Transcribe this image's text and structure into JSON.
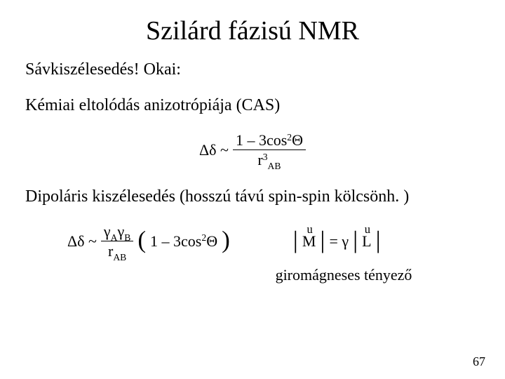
{
  "title": "Szilárd fázisú NMR",
  "line1": "Sávkiszélesedés! Okai:",
  "line2": "Kémiai eltolódás anizotrópiája (CAS)",
  "line3": "Dipoláris kiszélesedés (hosszú távú spin-spin kölcsönh. )",
  "gyro_label": "giromágneses tényező",
  "page_number": "67",
  "formula1": {
    "lhs": "Δδ ~",
    "num_a": "1 – 3cos",
    "num_sup": "2",
    "num_b": "Θ",
    "den_a": "r",
    "den_sup": "3",
    "den_sub": "AB"
  },
  "formula2": {
    "lhs": "Δδ ~",
    "num_a": "γ",
    "num_subA": "A",
    "num_b": "γ",
    "num_subB": "B",
    "den_a": "r",
    "den_sub": "AB",
    "paren_a": "1 – 3cos",
    "paren_sup": "2",
    "paren_b": "Θ"
  },
  "mag": {
    "M": "M",
    "eq": " = γ",
    "L": "L"
  },
  "colors": {
    "text": "#000000",
    "background": "#ffffff"
  },
  "fonts": {
    "family": "Times New Roman",
    "title_size_pt": 38,
    "body_size_pt": 24,
    "formula_size_pt": 22,
    "pagenum_size_pt": 18
  }
}
